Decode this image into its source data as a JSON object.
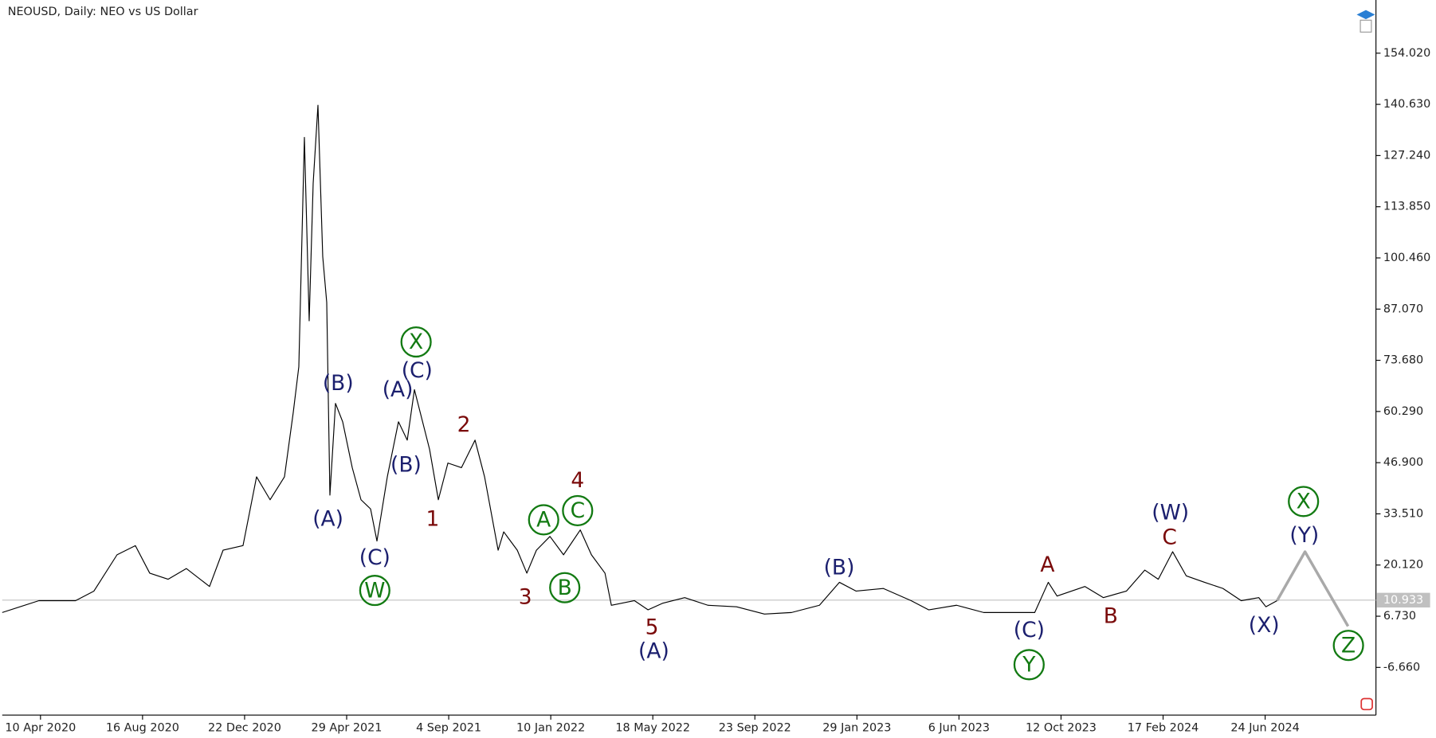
{
  "chart_data": {
    "type": "line",
    "title": "NEOUSD, Daily:  NEO vs US Dollar",
    "color": "#000000",
    "x": [
      "2020-02-22",
      "2020-04-08",
      "2020-05-24",
      "2020-06-16",
      "2020-07-15",
      "2020-08-07",
      "2020-08-25",
      "2020-09-17",
      "2020-10-10",
      "2020-11-08",
      "2020-11-25",
      "2020-12-20",
      "2021-01-06",
      "2021-01-23",
      "2021-02-10",
      "2021-02-21",
      "2021-02-28",
      "2021-03-07",
      "2021-03-13",
      "2021-03-18",
      "2021-03-24",
      "2021-03-30",
      "2021-04-04",
      "2021-04-08",
      "2021-04-15",
      "2021-04-24",
      "2021-05-06",
      "2021-05-17",
      "2021-05-29",
      "2021-06-06",
      "2021-06-19",
      "2021-07-03",
      "2021-07-14",
      "2021-07-23",
      "2021-08-11",
      "2021-08-22",
      "2021-09-03",
      "2021-09-20",
      "2021-10-07",
      "2021-10-19",
      "2021-11-05",
      "2021-11-12",
      "2021-11-29",
      "2021-12-11",
      "2021-12-23",
      "2022-01-09",
      "2022-01-26",
      "2022-02-16",
      "2022-03-02",
      "2022-03-19",
      "2022-03-27",
      "2022-04-25",
      "2022-05-12",
      "2022-05-30",
      "2022-06-27",
      "2022-07-26",
      "2022-08-31",
      "2022-10-05",
      "2022-11-08",
      "2022-12-13",
      "2023-01-07",
      "2023-01-28",
      "2023-03-03",
      "2023-04-07",
      "2023-04-29",
      "2023-06-03",
      "2023-07-07",
      "2023-08-11",
      "2023-09-09",
      "2023-09-26",
      "2023-10-07",
      "2023-11-11",
      "2023-12-04",
      "2024-01-02",
      "2024-01-25",
      "2024-02-11",
      "2024-02-29",
      "2024-03-17",
      "2024-04-09",
      "2024-05-02",
      "2024-05-25",
      "2024-06-16",
      "2024-06-25",
      "2024-07-09"
    ],
    "values": [
      7.7,
      10.8,
      10.8,
      13.3,
      22.8,
      25.2,
      18.0,
      16.4,
      19.2,
      14.5,
      24.0,
      25.2,
      43.2,
      37.2,
      43.2,
      60.0,
      72.0,
      132.0,
      84.0,
      120.0,
      140.4,
      100.8,
      88.8,
      38.4,
      62.4,
      57.6,
      45.6,
      37.2,
      34.8,
      26.4,
      43.2,
      57.6,
      52.8,
      66.0,
      50.4,
      37.2,
      46.8,
      45.6,
      52.8,
      43.2,
      24.0,
      28.8,
      24.0,
      18.0,
      24.0,
      27.6,
      22.8,
      29.3,
      22.8,
      18.0,
      9.6,
      10.8,
      8.4,
      10.1,
      11.6,
      9.6,
      9.2,
      7.3,
      7.7,
      9.6,
      15.6,
      13.3,
      14.0,
      10.8,
      8.4,
      9.6,
      7.7,
      7.7,
      7.7,
      15.6,
      12.0,
      14.5,
      11.6,
      13.3,
      18.8,
      16.4,
      23.6,
      17.3,
      15.6,
      14.0,
      10.8,
      11.6,
      9.2,
      10.8
    ],
    "projection": {
      "color": "#a9a9a9",
      "x": [
        "2024-07-09",
        "2024-08-13",
        "2024-10-06"
      ],
      "values": [
        10.8,
        23.6,
        4.1
      ]
    },
    "last_price": 10.933,
    "xlim": [
      "2020-02-22",
      "2024-11-10"
    ],
    "xticks": [
      {
        "value": "2020-04-10",
        "label": "10 Apr 2020"
      },
      {
        "value": "2020-08-16",
        "label": "16 Aug 2020"
      },
      {
        "value": "2020-12-22",
        "label": "22 Dec 2020"
      },
      {
        "value": "2021-04-29",
        "label": "29 Apr 2021"
      },
      {
        "value": "2021-09-04",
        "label": "4 Sep 2021"
      },
      {
        "value": "2022-01-10",
        "label": "10 Jan 2022"
      },
      {
        "value": "2022-05-18",
        "label": "18 May 2022"
      },
      {
        "value": "2022-09-23",
        "label": "23 Sep 2022"
      },
      {
        "value": "2023-01-29",
        "label": "29 Jan 2023"
      },
      {
        "value": "2023-06-06",
        "label": "6 Jun 2023"
      },
      {
        "value": "2023-10-12",
        "label": "12 Oct 2023"
      },
      {
        "value": "2024-02-17",
        "label": "17 Feb 2024"
      },
      {
        "value": "2024-06-24",
        "label": "24 Jun 2024"
      }
    ],
    "ylim": [
      -19.13,
      167.93
    ],
    "yticks": [
      {
        "value": 154.02,
        "label": "154.020"
      },
      {
        "value": 140.63,
        "label": "140.630"
      },
      {
        "value": 127.24,
        "label": "127.240"
      },
      {
        "value": 113.85,
        "label": "113.850"
      },
      {
        "value": 100.46,
        "label": "100.460"
      },
      {
        "value": 87.07,
        "label": "87.070"
      },
      {
        "value": 73.68,
        "label": "73.680"
      },
      {
        "value": 60.29,
        "label": "60.290"
      },
      {
        "value": 46.9,
        "label": "46.900"
      },
      {
        "value": 33.51,
        "label": "33.510"
      },
      {
        "value": 20.12,
        "label": "20.120"
      },
      {
        "value": 6.73,
        "label": "6.730"
      },
      {
        "value": -6.66,
        "label": "-6.660"
      }
    ],
    "grid": false,
    "annotations": [
      {
        "text": "(B)",
        "style": "blue"
      },
      {
        "text": "(A)",
        "style": "blue"
      },
      {
        "text": "(A)",
        "style": "blue"
      },
      {
        "text": "(C)",
        "style": "blue"
      },
      {
        "text": "X",
        "style": "green-circle"
      },
      {
        "text": "(B)",
        "style": "blue"
      },
      {
        "text": "(C)",
        "style": "blue"
      },
      {
        "text": "W",
        "style": "green-circle"
      },
      {
        "text": "1",
        "style": "red"
      },
      {
        "text": "2",
        "style": "red"
      },
      {
        "text": "3",
        "style": "red"
      },
      {
        "text": "4",
        "style": "red"
      },
      {
        "text": "5",
        "style": "red"
      },
      {
        "text": "(A)",
        "style": "blue"
      },
      {
        "text": "A",
        "style": "green-circle"
      },
      {
        "text": "C",
        "style": "green-circle"
      },
      {
        "text": "B",
        "style": "green-circle"
      },
      {
        "text": "(B)",
        "style": "blue"
      },
      {
        "text": "(C)",
        "style": "blue"
      },
      {
        "text": "Y",
        "style": "green-circle"
      },
      {
        "text": "A",
        "style": "red"
      },
      {
        "text": "B",
        "style": "red"
      },
      {
        "text": "C",
        "style": "red"
      },
      {
        "text": "(W)",
        "style": "blue"
      },
      {
        "text": "(X)",
        "style": "blue"
      },
      {
        "text": "X",
        "style": "green-circle"
      },
      {
        "text": "(Y)",
        "style": "blue"
      },
      {
        "text": "Z",
        "style": "green-circle"
      }
    ]
  }
}
